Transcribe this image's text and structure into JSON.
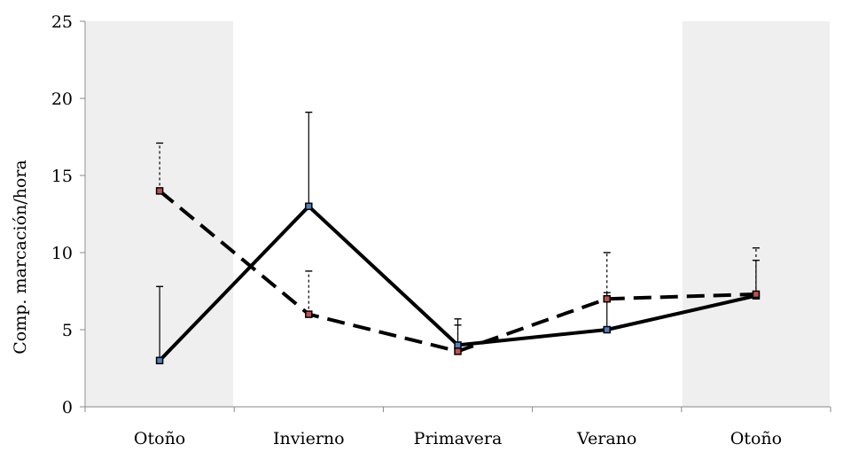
{
  "chart_data": {
    "type": "line",
    "title": "",
    "xlabel": "",
    "ylabel": "Comp. marcación/hora",
    "categories": [
      "Otoño",
      "Invierno",
      "Primavera",
      "Verano",
      "Otoño"
    ],
    "ylim": [
      0,
      25
    ],
    "yticks": [
      0,
      5,
      10,
      15,
      20,
      25
    ],
    "grid": false,
    "shaded_categories": [
      0,
      4
    ],
    "series": [
      {
        "line_style": "solid",
        "marker_color": "#4f81bd",
        "values": [
          3,
          13,
          4,
          5,
          7.2
        ],
        "error_upper": [
          7.8,
          19.1,
          5.7,
          7.4,
          9.5
        ]
      },
      {
        "line_style": "dashed",
        "marker_color": "#c0504d",
        "values": [
          14,
          6,
          3.6,
          7,
          7.3
        ],
        "error_upper": [
          17.1,
          8.8,
          5.3,
          10.0,
          10.3
        ]
      }
    ],
    "colors": {
      "line": "#000000",
      "shade": "#efefef",
      "axis": "#888888"
    }
  }
}
